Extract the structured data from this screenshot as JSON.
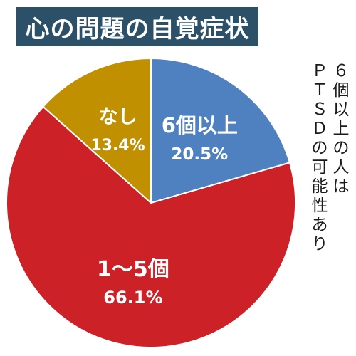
{
  "title": "心の問題の自覚症状",
  "side_note_columns": [
    [
      "６",
      "個",
      "以",
      "上",
      "の",
      "人",
      "は"
    ],
    [
      "Ｐ",
      "Ｔ",
      "Ｓ",
      "Ｄ",
      "の",
      "可",
      "能",
      "性",
      "あ",
      "り"
    ]
  ],
  "chart_data": {
    "type": "pie",
    "title": "心の問題の自覚症状",
    "categories": [
      "6個以上",
      "1～5個",
      "なし"
    ],
    "values": [
      20.5,
      66.1,
      13.4
    ],
    "value_labels": [
      "20.5%",
      "66.1%",
      "13.4%"
    ],
    "colors": [
      "#4f81c0",
      "#cc2127",
      "#c09000"
    ],
    "start": "12 o'clock",
    "direction": "clockwise",
    "legend": "none"
  }
}
